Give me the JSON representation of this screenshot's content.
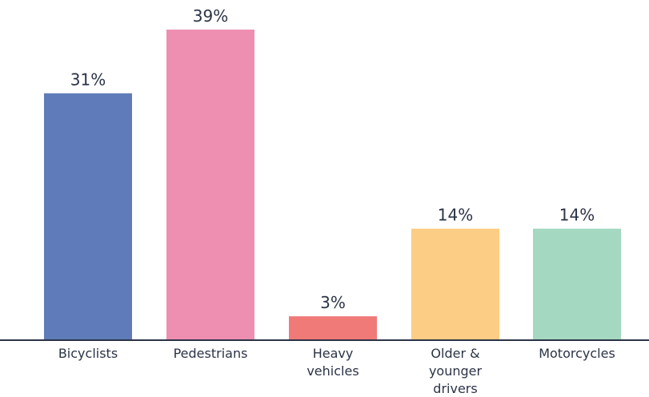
{
  "chart_data": {
    "type": "bar",
    "title": "",
    "xlabel": "",
    "ylabel": "",
    "ylim": [
      0,
      40
    ],
    "grid": false,
    "legend": "none",
    "categories": [
      [
        "Bicyclists"
      ],
      [
        "Pedestrians"
      ],
      [
        "Heavy",
        "vehicles"
      ],
      [
        "Older &",
        "younger",
        "drivers"
      ],
      [
        "Motorcycles"
      ]
    ],
    "values": [
      31,
      39,
      3,
      14,
      14
    ],
    "value_labels": [
      "31%",
      "39%",
      "3%",
      "14%",
      "14%"
    ],
    "colors": [
      "#5f7bb9",
      "#ee8fb2",
      "#f07a78",
      "#fccd84",
      "#a4d8c1"
    ],
    "axis_color": "#2b3346",
    "text_color": "#2b3346"
  }
}
